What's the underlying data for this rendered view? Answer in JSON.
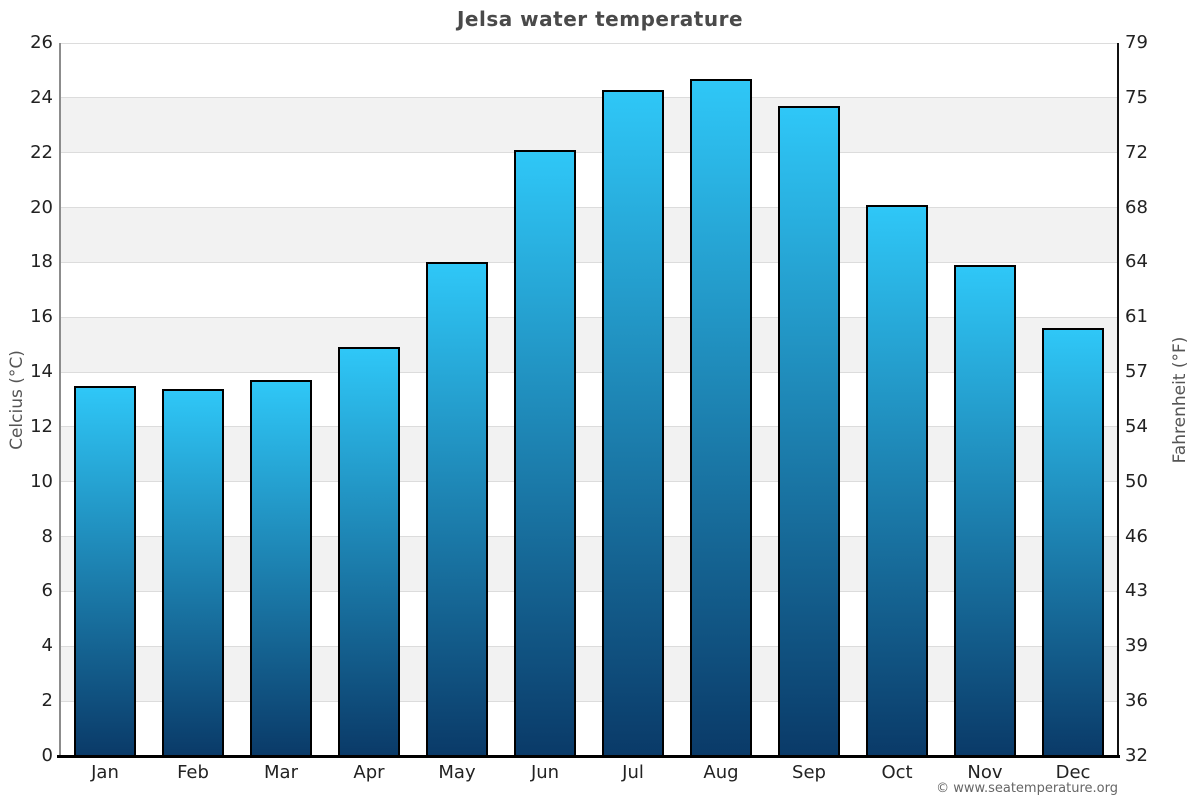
{
  "title": "Jelsa water temperature",
  "axes": {
    "left_label": "Celcius (°C)",
    "right_label": "Fahrenheit (°F)"
  },
  "footer": {
    "copyright": "© www.seatemperature.org"
  },
  "colors": {
    "bar_gradient_top": "#2fc7f7",
    "bar_gradient_bottom": "#0a3a68",
    "bar_border": "#000000",
    "band_alt": "#f2f2f2",
    "gridline": "#dcdcdc",
    "left_spine": "#8c8c8c",
    "right_spine": "#111111",
    "bottom_spine": "#000000",
    "title_text": "#4a4a4a",
    "tick_text": "#222222",
    "axis_label_text": "#555555",
    "copyright_text": "#666666"
  },
  "chart_data": {
    "type": "bar",
    "title": "Jelsa water temperature",
    "categories": [
      "Jan",
      "Feb",
      "Mar",
      "Apr",
      "May",
      "Jun",
      "Jul",
      "Aug",
      "Sep",
      "Oct",
      "Nov",
      "Dec"
    ],
    "values": [
      13.5,
      13.4,
      13.7,
      14.9,
      18.0,
      22.1,
      24.3,
      24.7,
      23.7,
      20.1,
      17.9,
      15.6
    ],
    "ylabel_left": "Celcius (°C)",
    "ylabel_right": "Fahrenheit (°F)",
    "ylim": [
      0,
      26
    ],
    "yticks_celsius": [
      0,
      2,
      4,
      6,
      8,
      10,
      12,
      14,
      16,
      18,
      20,
      22,
      24,
      26
    ],
    "yticks_fahrenheit": [
      32,
      36,
      39,
      43,
      46,
      50,
      54,
      57,
      61,
      64,
      68,
      72,
      75,
      79
    ],
    "grid": "horizontal lines every 2°C, alternating white/gray background bands",
    "legend": "none",
    "bar_style": "vertical gradient light cyan (top) to dark navy (bottom), black outline"
  }
}
